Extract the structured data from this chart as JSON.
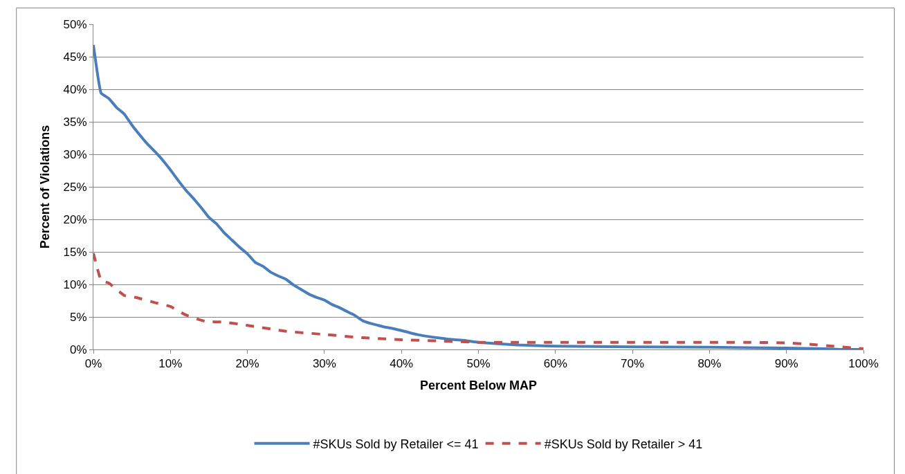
{
  "chart_data": {
    "type": "line",
    "xlabel": "Percent Below MAP",
    "ylabel": "Percent of Violations",
    "xlim": [
      0,
      100
    ],
    "ylim": [
      0,
      50
    ],
    "xticks": [
      {
        "value": 0,
        "label": "0%"
      },
      {
        "value": 10,
        "label": "10%"
      },
      {
        "value": 20,
        "label": "20%"
      },
      {
        "value": 30,
        "label": "30%"
      },
      {
        "value": 40,
        "label": "40%"
      },
      {
        "value": 50,
        "label": "50%"
      },
      {
        "value": 60,
        "label": "60%"
      },
      {
        "value": 70,
        "label": "70%"
      },
      {
        "value": 80,
        "label": "80%"
      },
      {
        "value": 90,
        "label": "90%"
      },
      {
        "value": 100,
        "label": "100%"
      }
    ],
    "yticks": [
      {
        "value": 0,
        "label": "0%"
      },
      {
        "value": 5,
        "label": "5%"
      },
      {
        "value": 10,
        "label": "10%"
      },
      {
        "value": 15,
        "label": "15%"
      },
      {
        "value": 20,
        "label": "20%"
      },
      {
        "value": 25,
        "label": "25%"
      },
      {
        "value": 30,
        "label": "30%"
      },
      {
        "value": 35,
        "label": "35%"
      },
      {
        "value": 40,
        "label": "40%"
      },
      {
        "value": 45,
        "label": "45%"
      },
      {
        "value": 50,
        "label": "50%"
      }
    ],
    "grid": "y",
    "legend": "bottom",
    "marker": "none",
    "series": [
      {
        "name": "#SKUs Sold by Retailer <= 41",
        "color": "#4a7ebb",
        "line_style": "solid",
        "x": [
          0,
          1,
          2,
          3,
          4,
          5,
          6,
          7,
          8,
          9,
          10,
          11,
          12,
          13,
          14,
          15,
          16,
          17,
          18,
          19,
          20,
          21,
          22,
          23,
          24,
          25,
          26,
          27,
          28,
          29,
          30,
          31,
          32,
          33,
          34,
          35,
          36,
          37,
          38,
          39,
          40,
          42,
          44,
          46,
          48,
          50,
          55,
          60,
          70,
          80,
          90,
          95,
          97,
          100
        ],
        "values": [
          46.8,
          39.4,
          38.6,
          37.2,
          36.2,
          34.5,
          33,
          31.6,
          30.4,
          29.1,
          27.6,
          26,
          24.5,
          23.2,
          21.8,
          20.3,
          19.3,
          17.9,
          16.8,
          15.7,
          14.7,
          13.4,
          12.8,
          11.9,
          11.3,
          10.8,
          9.9,
          9.2,
          8.5,
          8,
          7.6,
          6.9,
          6.4,
          5.8,
          5.2,
          4.4,
          4,
          3.7,
          3.4,
          3.2,
          2.9,
          2.3,
          1.9,
          1.6,
          1.4,
          1.1,
          0.7,
          0.5,
          0.4,
          0.35,
          0.2,
          0.1,
          0,
          0
        ]
      },
      {
        "name": "#SKUs Sold by Retailer > 41",
        "color": "#c0504d",
        "line_style": "dashed",
        "x": [
          0,
          0.5,
          1,
          2,
          4,
          5.5,
          8,
          10,
          12,
          14.6,
          17,
          20,
          25,
          30,
          35,
          40,
          45,
          50,
          55,
          60,
          70,
          80,
          85,
          90,
          93,
          96,
          100
        ],
        "values": [
          14.8,
          12.5,
          10.6,
          10.2,
          8.3,
          8,
          7.2,
          6.6,
          5.3,
          4.3,
          4.2,
          3.7,
          2.8,
          2.3,
          1.8,
          1.5,
          1.3,
          1.1,
          1.1,
          1.1,
          1.1,
          1.1,
          1.1,
          1,
          0.8,
          0.5,
          0.1
        ]
      }
    ]
  }
}
